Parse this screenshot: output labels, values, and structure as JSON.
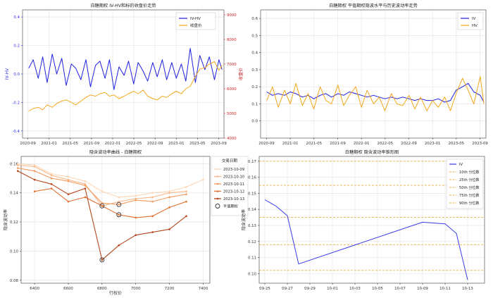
{
  "chart_data": [
    {
      "id": "p1",
      "type": "line",
      "title": "白糖期权 IV-HV和标的收盘价走势",
      "xlabel": "",
      "ylabel": "IV-HV",
      "ylabel_right": "收盘价",
      "xlim": [
        2020.583,
        2023.75
      ],
      "ylim": [
        -0.45,
        0.45
      ],
      "ylim_right": [
        4000,
        9200
      ],
      "x_ticks": [
        {
          "v": 2020.667,
          "label": "2020-09"
        },
        {
          "v": 2021.0,
          "label": "2021-01"
        },
        {
          "v": 2021.333,
          "label": "2021-05"
        },
        {
          "v": 2021.667,
          "label": "2021-09"
        },
        {
          "v": 2022.0,
          "label": "2022-01"
        },
        {
          "v": 2022.333,
          "label": "2022-05"
        },
        {
          "v": 2022.667,
          "label": "2022-09"
        },
        {
          "v": 2023.0,
          "label": "2023-01"
        },
        {
          "v": 2023.333,
          "label": "2023-05"
        },
        {
          "v": 2023.667,
          "label": "2023-09"
        }
      ],
      "y_ticks": [
        {
          "v": -0.4,
          "label": "-0.4"
        },
        {
          "v": -0.2,
          "label": "-0.2"
        },
        {
          "v": 0.0,
          "label": "0.0"
        },
        {
          "v": 0.2,
          "label": "0.2"
        },
        {
          "v": 0.4,
          "label": "0.4"
        }
      ],
      "y_ticks_right": [
        {
          "v": 4000,
          "label": "4000"
        },
        {
          "v": 5000,
          "label": "5000"
        },
        {
          "v": 6000,
          "label": "6000"
        },
        {
          "v": 7000,
          "label": "7000"
        },
        {
          "v": 8000,
          "label": "8000"
        },
        {
          "v": 9000,
          "label": "9000"
        }
      ],
      "grid": true,
      "legend_position": "top-right",
      "series": [
        {
          "name": "IV-HV",
          "color": "#1f1fe0",
          "axis": "left",
          "x": [
            2020.68,
            2020.75,
            2020.83,
            2020.9,
            2020.97,
            2021.05,
            2021.12,
            2021.2,
            2021.27,
            2021.35,
            2021.42,
            2021.5,
            2021.58,
            2021.65,
            2021.73,
            2021.8,
            2021.88,
            2021.95,
            2022.02,
            2022.1,
            2022.18,
            2022.25,
            2022.33,
            2022.4,
            2022.48,
            2022.55,
            2022.63,
            2022.7,
            2022.78,
            2022.85,
            2022.93,
            2023.0,
            2023.08,
            2023.15,
            2023.22,
            2023.3,
            2023.37,
            2023.45,
            2023.52,
            2023.6,
            2023.67,
            2023.72
          ],
          "y": [
            0.04,
            0.1,
            -0.03,
            0.12,
            -0.06,
            0.14,
            0.0,
            0.11,
            -0.08,
            0.07,
            0.04,
            -0.04,
            0.1,
            -0.09,
            0.06,
            0.09,
            -0.03,
            0.1,
            -0.11,
            0.05,
            -0.01,
            0.09,
            -0.07,
            0.08,
            0.02,
            -0.05,
            0.08,
            -0.02,
            0.1,
            -0.04,
            0.08,
            -0.03,
            0.07,
            -0.05,
            0.18,
            -0.06,
            0.13,
            0.03,
            0.12,
            -0.04,
            0.1,
            0.03
          ]
        },
        {
          "name": "收盘价",
          "color": "#f2a81e",
          "axis": "right",
          "x": [
            2020.68,
            2020.75,
            2020.83,
            2020.9,
            2020.97,
            2021.05,
            2021.12,
            2021.2,
            2021.27,
            2021.35,
            2021.42,
            2021.5,
            2021.58,
            2021.65,
            2021.73,
            2021.8,
            2021.88,
            2021.95,
            2022.02,
            2022.1,
            2022.18,
            2022.25,
            2022.33,
            2022.4,
            2022.48,
            2022.55,
            2022.63,
            2022.7,
            2022.78,
            2022.85,
            2022.93,
            2023.0,
            2023.08,
            2023.15,
            2023.22,
            2023.3,
            2023.37,
            2023.45,
            2023.52,
            2023.6,
            2023.67,
            2023.72
          ],
          "y": [
            5100,
            5200,
            5250,
            5150,
            5350,
            5250,
            5400,
            5500,
            5550,
            5450,
            5350,
            5500,
            5650,
            5750,
            5700,
            5800,
            5850,
            5700,
            5750,
            5600,
            5700,
            5800,
            5900,
            5800,
            5950,
            5700,
            5600,
            5550,
            5700,
            5650,
            5800,
            5900,
            5800,
            6000,
            6100,
            6500,
            6800,
            6850,
            7000,
            7100,
            6750,
            6950
          ]
        }
      ]
    },
    {
      "id": "p2",
      "type": "line",
      "title": "白糖期权 平值期权隐波水平与历史波动率走势",
      "xlabel": "",
      "ylabel": "",
      "xlim": [
        2020.583,
        2023.75
      ],
      "ylim": [
        -0.1,
        0.65
      ],
      "x_ticks": [
        {
          "v": 2020.667,
          "label": "2020-09"
        },
        {
          "v": 2021.0,
          "label": "2021-01"
        },
        {
          "v": 2021.333,
          "label": "2021-05"
        },
        {
          "v": 2021.667,
          "label": "2021-09"
        },
        {
          "v": 2022.0,
          "label": "2022-01"
        },
        {
          "v": 2022.333,
          "label": "2022-05"
        },
        {
          "v": 2022.667,
          "label": "2022-09"
        },
        {
          "v": 2023.0,
          "label": "2023-01"
        },
        {
          "v": 2023.333,
          "label": "2023-05"
        },
        {
          "v": 2023.667,
          "label": "2023-09"
        }
      ],
      "y_ticks": [
        {
          "v": 0.0,
          "label": "0.0"
        },
        {
          "v": 0.1,
          "label": "0.1"
        },
        {
          "v": 0.2,
          "label": "0.2"
        },
        {
          "v": 0.3,
          "label": "0.3"
        },
        {
          "v": 0.4,
          "label": "0.4"
        },
        {
          "v": 0.5,
          "label": "0.5"
        },
        {
          "v": 0.6,
          "label": "0.6"
        }
      ],
      "grid": true,
      "legend_position": "top-right",
      "series": [
        {
          "name": "IV",
          "color": "#1f1fe0",
          "x": [
            2020.67,
            2020.75,
            2020.83,
            2020.92,
            2021.0,
            2021.08,
            2021.17,
            2021.25,
            2021.33,
            2021.42,
            2021.5,
            2021.58,
            2021.67,
            2021.75,
            2021.83,
            2021.92,
            2022.0,
            2022.08,
            2022.17,
            2022.25,
            2022.33,
            2022.42,
            2022.5,
            2022.58,
            2022.67,
            2022.75,
            2022.83,
            2022.92,
            2023.0,
            2023.08,
            2023.17,
            2023.25,
            2023.33,
            2023.42,
            2023.5,
            2023.58,
            2023.67,
            2023.72
          ],
          "y": [
            0.17,
            0.15,
            0.16,
            0.15,
            0.17,
            0.16,
            0.14,
            0.15,
            0.13,
            0.15,
            0.16,
            0.14,
            0.16,
            0.15,
            0.17,
            0.16,
            0.15,
            0.14,
            0.15,
            0.14,
            0.13,
            0.14,
            0.13,
            0.14,
            0.13,
            0.12,
            0.13,
            0.12,
            0.12,
            0.13,
            0.11,
            0.12,
            0.18,
            0.2,
            0.22,
            0.17,
            0.15,
            0.11
          ]
        },
        {
          "name": "HV",
          "color": "#f2a81e",
          "x": [
            2020.67,
            2020.75,
            2020.83,
            2020.92,
            2021.0,
            2021.08,
            2021.17,
            2021.25,
            2021.33,
            2021.42,
            2021.5,
            2021.58,
            2021.67,
            2021.75,
            2021.83,
            2021.92,
            2022.0,
            2022.08,
            2022.17,
            2022.25,
            2022.33,
            2022.42,
            2022.5,
            2022.58,
            2022.67,
            2022.75,
            2022.83,
            2022.92,
            2023.0,
            2023.08,
            2023.17,
            2023.25,
            2023.33,
            2023.42,
            2023.5,
            2023.58,
            2023.67,
            2023.72
          ],
          "y": [
            0.12,
            0.2,
            0.08,
            0.18,
            0.1,
            0.22,
            0.09,
            0.16,
            0.07,
            0.2,
            0.12,
            0.1,
            0.21,
            0.09,
            0.15,
            0.2,
            0.08,
            0.18,
            0.1,
            0.14,
            0.06,
            0.16,
            0.1,
            0.09,
            0.15,
            0.07,
            0.14,
            0.06,
            0.12,
            0.08,
            0.14,
            0.06,
            0.16,
            0.25,
            0.18,
            0.1,
            0.26,
            0.1
          ]
        }
      ]
    },
    {
      "id": "p3",
      "type": "line",
      "title": "隐含波动率曲线 - 白糖期权",
      "xlabel": "行权价",
      "ylabel": "隐含波动率",
      "xlim": [
        6320,
        7440
      ],
      "ylim": [
        0.078,
        0.165
      ],
      "x_ticks": [
        {
          "v": 6400,
          "label": "6400"
        },
        {
          "v": 6600,
          "label": "6600"
        },
        {
          "v": 6800,
          "label": "6800"
        },
        {
          "v": 7000,
          "label": "7000"
        },
        {
          "v": 7200,
          "label": "7200"
        },
        {
          "v": 7400,
          "label": "7400"
        }
      ],
      "y_ticks": [
        {
          "v": 0.08,
          "label": "0.08"
        },
        {
          "v": 0.1,
          "label": "0.10"
        },
        {
          "v": 0.12,
          "label": "0.12"
        },
        {
          "v": 0.14,
          "label": "0.14"
        },
        {
          "v": 0.16,
          "label": "0.16"
        }
      ],
      "grid": true,
      "legend_title": "交易日期",
      "legend_position": "top-right",
      "atm_label": "平值期权",
      "atm_points": [
        {
          "x": 6800,
          "y": 0.131
        },
        {
          "x": 6900,
          "y": 0.132
        },
        {
          "x": 6900,
          "y": 0.125
        },
        {
          "x": 6800,
          "y": 0.094
        }
      ],
      "series": [
        {
          "name": "2023-10-09",
          "color": "#fbd7b8",
          "x": [
            6300,
            6400,
            6500,
            6600,
            6700,
            6800,
            6900,
            7000,
            7100,
            7200,
            7300,
            7400
          ],
          "y": [
            0.16,
            0.159,
            0.153,
            0.151,
            0.148,
            0.141,
            0.137,
            0.138,
            0.14,
            0.141,
            0.144,
            0.149
          ]
        },
        {
          "name": "2023-10-10",
          "color": "#f9b789",
          "x": [
            6300,
            6400,
            6500,
            6600,
            6700,
            6800,
            6900,
            7000,
            7100,
            7200,
            7300
          ],
          "y": [
            0.159,
            0.158,
            0.152,
            0.149,
            0.146,
            0.131,
            0.134,
            0.136,
            0.137,
            0.14,
            0.141
          ]
        },
        {
          "name": "2023-10-11",
          "color": "#f39a5e",
          "x": [
            6300,
            6400,
            6500,
            6600,
            6700,
            6800,
            6900,
            7000,
            7100,
            7200,
            7300
          ],
          "y": [
            0.157,
            0.155,
            0.15,
            0.148,
            0.145,
            0.133,
            0.132,
            0.135,
            0.134,
            0.137,
            0.139
          ]
        },
        {
          "name": "2023-10-12",
          "color": "#e0702f",
          "x": [
            6400,
            6500,
            6600,
            6700,
            6800,
            6900,
            7000,
            7100,
            7200,
            7300
          ],
          "y": [
            0.141,
            0.143,
            0.134,
            0.137,
            0.131,
            0.125,
            0.123,
            0.124,
            0.13,
            0.134
          ]
        },
        {
          "name": "2023-10-13",
          "color": "#b4461f",
          "x": [
            6300,
            6400,
            6500,
            6600,
            6700,
            6800,
            6900,
            7000,
            7100,
            7200,
            7300
          ],
          "y": [
            0.155,
            0.149,
            0.146,
            0.139,
            0.143,
            0.094,
            0.104,
            0.111,
            0.113,
            0.115,
            0.124
          ]
        }
      ]
    },
    {
      "id": "p4",
      "type": "line",
      "title": "白糖期权 隐含波动率锥形图",
      "xlabel": "",
      "ylabel": "隐含波动率",
      "xlim": [
        -0.5,
        19.5
      ],
      "ylim": [
        0.094,
        0.173
      ],
      "x_ticks": [
        {
          "v": 0,
          "label": "09-25"
        },
        {
          "v": 2,
          "label": "09-27"
        },
        {
          "v": 4,
          "label": "09-29"
        },
        {
          "v": 6,
          "label": "10-01"
        },
        {
          "v": 8,
          "label": "10-03"
        },
        {
          "v": 10,
          "label": "10-05"
        },
        {
          "v": 12,
          "label": "10-07"
        },
        {
          "v": 14,
          "label": "10-09"
        },
        {
          "v": 16,
          "label": "10-11"
        },
        {
          "v": 18,
          "label": "10-13"
        }
      ],
      "y_ticks": [
        {
          "v": 0.1,
          "label": "0.10"
        },
        {
          "v": 0.11,
          "label": "0.11"
        },
        {
          "v": 0.12,
          "label": "0.12"
        },
        {
          "v": 0.13,
          "label": "0.13"
        },
        {
          "v": 0.14,
          "label": "0.14"
        },
        {
          "v": 0.15,
          "label": "0.15"
        },
        {
          "v": 0.16,
          "label": "0.16"
        },
        {
          "v": 0.17,
          "label": "0.17"
        }
      ],
      "grid": true,
      "legend_position": "top-right",
      "series": [
        {
          "name": "IV",
          "color": "#3a3ae8",
          "x": [
            0,
            1,
            2,
            3,
            14,
            16,
            17,
            18
          ],
          "y": [
            0.146,
            0.142,
            0.136,
            0.106,
            0.132,
            0.131,
            0.125,
            0.096
          ]
        }
      ],
      "quantiles": [
        {
          "name": "10th 分位数",
          "value": 0.102,
          "color": "#e8b04a"
        },
        {
          "name": "25th 分位数",
          "value": 0.118,
          "color": "#e8b04a"
        },
        {
          "name": "50th 分位数",
          "value": 0.135,
          "color": "#e8b04a"
        },
        {
          "name": "75th 分位数",
          "value": 0.155,
          "color": "#e8b04a"
        },
        {
          "name": "90th 分位数",
          "value": 0.17,
          "color": "#e8b04a"
        }
      ]
    }
  ]
}
